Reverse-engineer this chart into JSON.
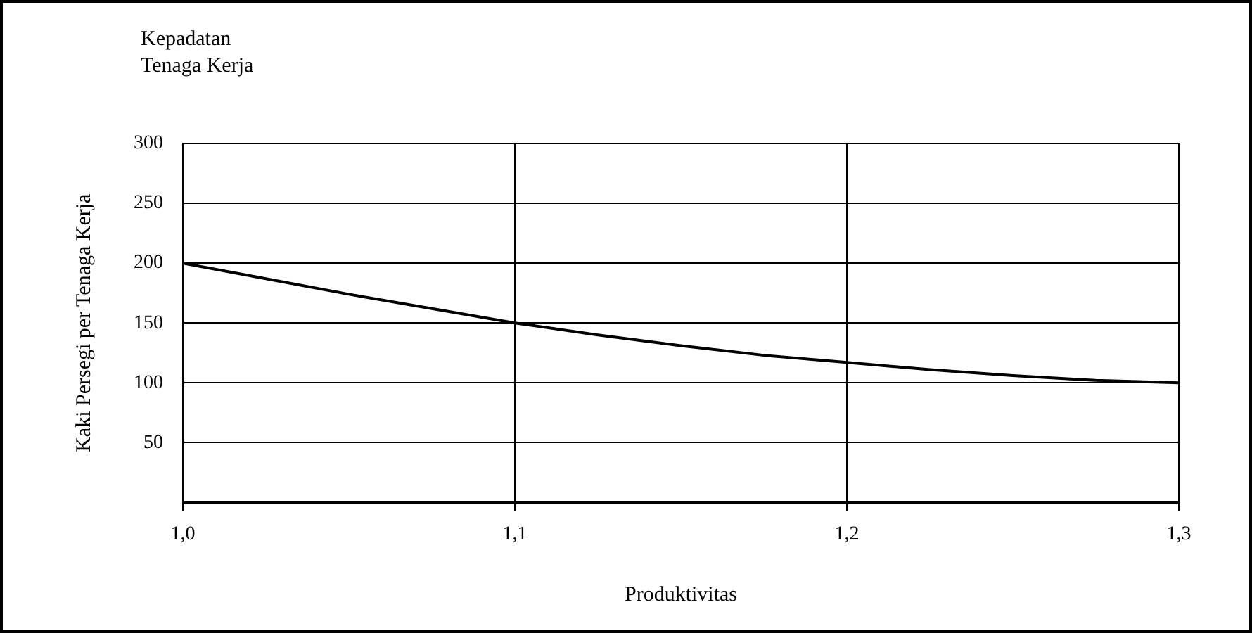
{
  "chart_data": {
    "type": "line",
    "title": "Kepadatan Tenaga Kerja",
    "xlabel": "Produktivitas",
    "ylabel": "Kaki Persegi per Tenaga Kerja",
    "x": [
      1.0,
      1.025,
      1.05,
      1.075,
      1.1,
      1.125,
      1.15,
      1.175,
      1.2,
      1.225,
      1.25,
      1.275,
      1.3
    ],
    "series": [
      {
        "color": "#000000",
        "values": [
          200,
          187,
          174,
          162,
          150,
          140,
          131,
          123,
          117,
          111,
          106,
          102,
          100
        ]
      }
    ],
    "xlim": [
      1.0,
      1.3
    ],
    "xticks": [
      {
        "value": 1.0,
        "label": "1,0"
      },
      {
        "value": 1.1,
        "label": "1,1"
      },
      {
        "value": 1.2,
        "label": "1,2"
      },
      {
        "value": 1.3,
        "label": "1,3"
      }
    ],
    "ylim": [
      0,
      300
    ],
    "yticks": [
      {
        "value": 0,
        "label": null
      },
      50,
      100,
      150,
      200,
      250,
      300
    ],
    "grid": true,
    "marker": "none",
    "line_style": "solid"
  }
}
